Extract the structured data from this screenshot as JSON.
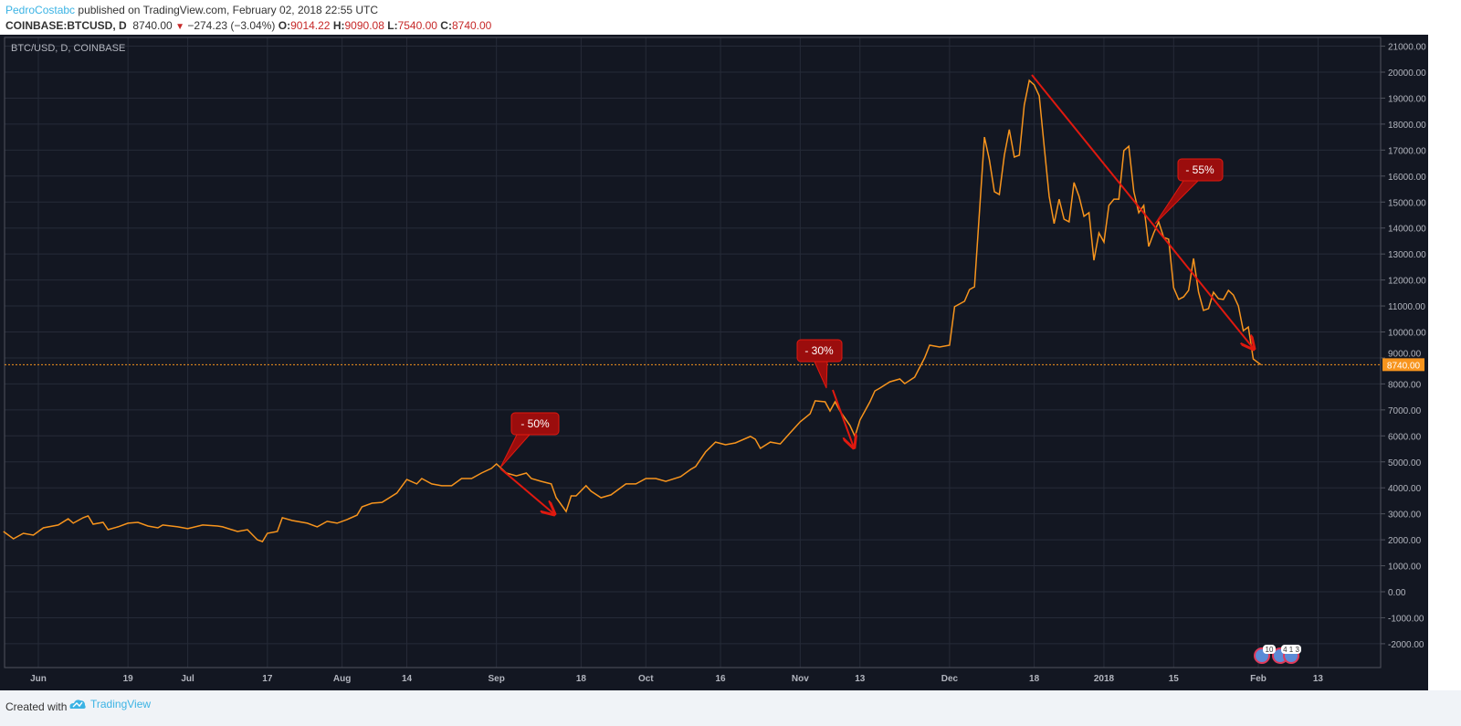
{
  "header": {
    "user": "PedroCostabc",
    "published": "published on TradingView.com, February 02, 2018 22:55 UTC",
    "symbol": "COINBASE:BTCUSD, D",
    "last": "8740.00",
    "change": "−274.23 (−3.04%)",
    "o_label": "O:",
    "o": "9014.22",
    "h_label": "H:",
    "h": "9090.08",
    "l_label": "L:",
    "l": "7540.00",
    "c_label": "C:",
    "c": "8740.00"
  },
  "footer": {
    "created_with": "Created with",
    "brand": "TradingView"
  },
  "colors": {
    "background": "#131722",
    "grid": "#262b38",
    "line": "#f7941d",
    "annotation": "#e0190f",
    "callout": "#9b0d0d"
  },
  "chart_data": {
    "type": "line",
    "title": "BTC/USD, D, COINBASE",
    "xlabel": "",
    "ylabel": "",
    "x_unit": "days since Jun 1 2017",
    "ylim": [
      -2500,
      21500
    ],
    "y_ticks": [
      21000,
      20000,
      19000,
      18000,
      17000,
      16000,
      15000,
      14000,
      13000,
      12000,
      11000,
      10000,
      9000,
      8000,
      7000,
      6000,
      5000,
      4000,
      3000,
      2000,
      1000,
      0,
      -1000,
      -2000
    ],
    "y_tick_labels": [
      "21000.00",
      "20000.00",
      "19000.00",
      "18000.00",
      "17000.00",
      "16000.00",
      "15000.00",
      "14000.00",
      "13000.00",
      "12000.00",
      "11000.00",
      "10000.00",
      "9000.00",
      "8000.00",
      "7000.00",
      "6000.00",
      "5000.00",
      "4000.00",
      "3000.00",
      "2000.00",
      "1000.00",
      "0.00",
      "-1000.00",
      "-2000.00"
    ],
    "x_ticks": [
      {
        "label": "Jun",
        "day": 0
      },
      {
        "label": "19",
        "day": 18
      },
      {
        "label": "Jul",
        "day": 30
      },
      {
        "label": "17",
        "day": 46
      },
      {
        "label": "Aug",
        "day": 61
      },
      {
        "label": "14",
        "day": 74
      },
      {
        "label": "Sep",
        "day": 92
      },
      {
        "label": "18",
        "day": 109
      },
      {
        "label": "Oct",
        "day": 122
      },
      {
        "label": "16",
        "day": 137
      },
      {
        "label": "Nov",
        "day": 153
      },
      {
        "label": "13",
        "day": 165
      },
      {
        "label": "Dec",
        "day": 183
      },
      {
        "label": "18",
        "day": 200
      },
      {
        "label": "2018",
        "day": 214
      },
      {
        "label": "15",
        "day": 228
      },
      {
        "label": "Feb",
        "day": 245
      },
      {
        "label": "13",
        "day": 257
      }
    ],
    "grid": true,
    "last_price": 8740,
    "last_price_label": "8740.00",
    "annotations": [
      "- 50%",
      "- 30%",
      "- 55%"
    ],
    "events_badges": [
      "10",
      "4 1 3"
    ],
    "series": [
      {
        "name": "BTCUSD close",
        "points": [
          [
            -7,
            2320
          ],
          [
            -5,
            2040
          ],
          [
            -3,
            2250
          ],
          [
            -1,
            2180
          ],
          [
            1,
            2460
          ],
          [
            4,
            2570
          ],
          [
            6,
            2810
          ],
          [
            7,
            2640
          ],
          [
            9,
            2850
          ],
          [
            10,
            2920
          ],
          [
            11,
            2600
          ],
          [
            13,
            2670
          ],
          [
            14,
            2390
          ],
          [
            16,
            2500
          ],
          [
            18,
            2640
          ],
          [
            20,
            2670
          ],
          [
            22,
            2530
          ],
          [
            24,
            2460
          ],
          [
            25,
            2570
          ],
          [
            28,
            2500
          ],
          [
            30,
            2430
          ],
          [
            33,
            2570
          ],
          [
            36,
            2530
          ],
          [
            37,
            2500
          ],
          [
            40,
            2320
          ],
          [
            42,
            2390
          ],
          [
            44,
            2000
          ],
          [
            45,
            1930
          ],
          [
            46,
            2250
          ],
          [
            48,
            2320
          ],
          [
            49,
            2850
          ],
          [
            51,
            2740
          ],
          [
            54,
            2640
          ],
          [
            56,
            2500
          ],
          [
            58,
            2710
          ],
          [
            60,
            2640
          ],
          [
            62,
            2780
          ],
          [
            64,
            2950
          ],
          [
            65,
            3270
          ],
          [
            67,
            3410
          ],
          [
            69,
            3440
          ],
          [
            72,
            3800
          ],
          [
            74,
            4320
          ],
          [
            76,
            4150
          ],
          [
            77,
            4360
          ],
          [
            79,
            4150
          ],
          [
            81,
            4080
          ],
          [
            83,
            4080
          ],
          [
            85,
            4360
          ],
          [
            87,
            4360
          ],
          [
            89,
            4570
          ],
          [
            91,
            4750
          ],
          [
            92,
            4920
          ],
          [
            94,
            4570
          ],
          [
            96,
            4460
          ],
          [
            98,
            4570
          ],
          [
            99,
            4360
          ],
          [
            101,
            4250
          ],
          [
            103,
            4150
          ],
          [
            104,
            3620
          ],
          [
            106,
            3090
          ],
          [
            107,
            3690
          ],
          [
            108,
            3690
          ],
          [
            110,
            4080
          ],
          [
            111,
            3870
          ],
          [
            113,
            3620
          ],
          [
            115,
            3730
          ],
          [
            116,
            3870
          ],
          [
            118,
            4150
          ],
          [
            120,
            4150
          ],
          [
            122,
            4360
          ],
          [
            124,
            4360
          ],
          [
            126,
            4250
          ],
          [
            129,
            4430
          ],
          [
            131,
            4710
          ],
          [
            132,
            4820
          ],
          [
            134,
            5380
          ],
          [
            136,
            5760
          ],
          [
            138,
            5660
          ],
          [
            140,
            5730
          ],
          [
            143,
            5980
          ],
          [
            144,
            5870
          ],
          [
            145,
            5520
          ],
          [
            147,
            5760
          ],
          [
            149,
            5690
          ],
          [
            151,
            6120
          ],
          [
            153,
            6540
          ],
          [
            155,
            6850
          ],
          [
            156,
            7350
          ],
          [
            158,
            7310
          ],
          [
            159,
            6960
          ],
          [
            160,
            7310
          ],
          [
            161,
            6960
          ],
          [
            163,
            6400
          ],
          [
            164,
            5980
          ],
          [
            165,
            6610
          ],
          [
            167,
            7310
          ],
          [
            168,
            7730
          ],
          [
            169,
            7840
          ],
          [
            171,
            8080
          ],
          [
            173,
            8190
          ],
          [
            174,
            8010
          ],
          [
            176,
            8260
          ],
          [
            178,
            9000
          ],
          [
            179,
            9490
          ],
          [
            181,
            9420
          ],
          [
            183,
            9490
          ],
          [
            184,
            10970
          ],
          [
            186,
            11180
          ],
          [
            187,
            11630
          ],
          [
            188,
            11740
          ],
          [
            190,
            17500
          ],
          [
            191,
            16630
          ],
          [
            192,
            15400
          ],
          [
            193,
            15290
          ],
          [
            194,
            16800
          ],
          [
            195,
            17790
          ],
          [
            196,
            16730
          ],
          [
            197,
            16800
          ],
          [
            198,
            18730
          ],
          [
            199,
            19680
          ],
          [
            200,
            19510
          ],
          [
            201,
            19090
          ],
          [
            202,
            17150
          ],
          [
            203,
            15220
          ],
          [
            204,
            14170
          ],
          [
            205,
            15110
          ],
          [
            206,
            14340
          ],
          [
            207,
            14240
          ],
          [
            208,
            15750
          ],
          [
            209,
            15220
          ],
          [
            210,
            14450
          ],
          [
            211,
            14590
          ],
          [
            212,
            12760
          ],
          [
            213,
            13810
          ],
          [
            214,
            13460
          ],
          [
            215,
            14870
          ],
          [
            216,
            15110
          ],
          [
            217,
            15110
          ],
          [
            218,
            16980
          ],
          [
            219,
            17150
          ],
          [
            220,
            15400
          ],
          [
            221,
            14590
          ],
          [
            222,
            14870
          ],
          [
            223,
            13290
          ],
          [
            224,
            13810
          ],
          [
            225,
            14240
          ],
          [
            226,
            13640
          ],
          [
            227,
            13570
          ],
          [
            228,
            11700
          ],
          [
            229,
            11250
          ],
          [
            230,
            11350
          ],
          [
            231,
            11600
          ],
          [
            232,
            12830
          ],
          [
            233,
            11530
          ],
          [
            234,
            10830
          ],
          [
            235,
            10900
          ],
          [
            236,
            11530
          ],
          [
            237,
            11280
          ],
          [
            238,
            11250
          ],
          [
            239,
            11600
          ],
          [
            240,
            11420
          ],
          [
            241,
            11000
          ],
          [
            242,
            10050
          ],
          [
            243,
            10190
          ],
          [
            244,
            8960
          ],
          [
            245.5,
            8740
          ]
        ]
      }
    ]
  }
}
